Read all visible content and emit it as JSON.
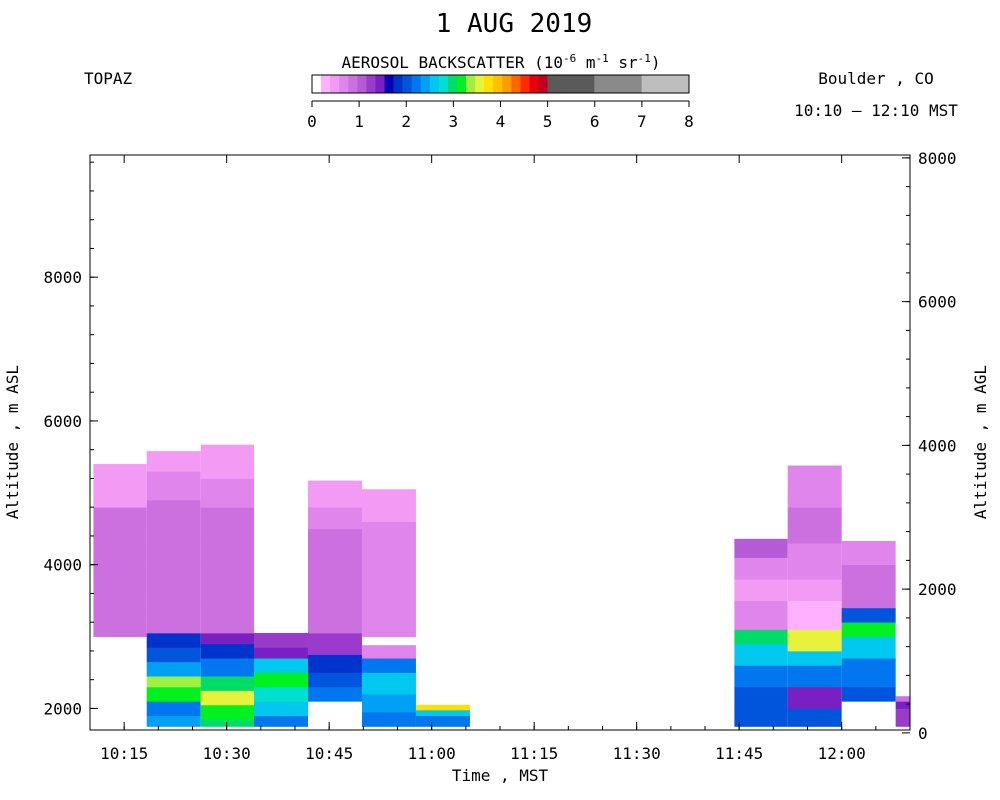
{
  "header": {
    "title": "1 AUG 2019",
    "instrument": "TOPAZ",
    "location": "Boulder , CO",
    "time_range": "10:10 – 12:10 MST"
  },
  "colorbar": {
    "title_prefix": "AEROSOL BACKSCATTER (10",
    "title_exp1": "-6",
    "title_mid1": " m",
    "title_exp2": "-1",
    "title_mid2": " sr",
    "title_exp3": "-1",
    "title_suffix": ")",
    "ticks": [
      "0",
      "1",
      "2",
      "3",
      "4",
      "5",
      "6",
      "7",
      "8"
    ],
    "colors": [
      "#ffffff",
      "#ffb0ff",
      "#f39af5",
      "#e085eb",
      "#cc70e0",
      "#b65ad6",
      "#9a3bcc",
      "#7a1fc2",
      "#0a00b4",
      "#0033cc",
      "#0055dd",
      "#0077ee",
      "#00a0f5",
      "#00c8ee",
      "#00e0d0",
      "#00dd66",
      "#00f020",
      "#a0f040",
      "#e8f23a",
      "#ffe000",
      "#ffc000",
      "#ff9a00",
      "#ff6600",
      "#ff2a00",
      "#e60010",
      "#c00020",
      "#5a5a5a",
      "#8a8a8a",
      "#bebebe"
    ]
  },
  "chart_data": {
    "type": "heatmap",
    "title": "1 AUG 2019",
    "xlabel": "Time , MST",
    "ylabel": "Altitude , m ASL",
    "ylabel_right": "Altitude , m AGL",
    "x_ticks": [
      "10:15",
      "10:30",
      "10:45",
      "11:00",
      "11:15",
      "11:30",
      "11:45",
      "12:00"
    ],
    "x_tick_minutes": [
      15,
      30,
      45,
      60,
      75,
      90,
      105,
      120
    ],
    "xlim_minutes": [
      10,
      130
    ],
    "ylim": [
      1700,
      9700
    ],
    "y_ticks": [
      2000,
      4000,
      6000,
      8000
    ],
    "y_ticks_right": [
      0,
      2000,
      4000,
      6000,
      8000
    ],
    "right_axis_offset": 1660,
    "units": "10^-6 m^-1 sr^-1",
    "columns": [
      {
        "t0": 10.5,
        "t1": 18.3,
        "segments": [
          [
            3000,
            3200,
            0.8
          ],
          [
            3200,
            3600,
            0.8
          ],
          [
            3600,
            4000,
            0.8
          ],
          [
            4000,
            4400,
            0.9
          ],
          [
            4400,
            4800,
            0.8
          ],
          [
            4800,
            5100,
            0.5
          ],
          [
            5100,
            5400,
            0.4
          ]
        ]
      },
      {
        "t0": 18.3,
        "t1": 26.2,
        "segments": [
          [
            1750,
            1900,
            2.4
          ],
          [
            1900,
            2100,
            2.2
          ],
          [
            2100,
            2300,
            3.2
          ],
          [
            2300,
            2450,
            3.4
          ],
          [
            2450,
            2650,
            2.4
          ],
          [
            2650,
            2850,
            2.1
          ],
          [
            2850,
            3050,
            1.8
          ],
          [
            3050,
            3500,
            0.8
          ],
          [
            3500,
            4000,
            0.9
          ],
          [
            4000,
            4400,
            0.9
          ],
          [
            4400,
            4900,
            0.8
          ],
          [
            4900,
            5300,
            0.6
          ],
          [
            5300,
            5580,
            0.4
          ]
        ]
      },
      {
        "t0": 26.2,
        "t1": 34.0,
        "segments": [
          [
            1750,
            1850,
            3.0
          ],
          [
            1850,
            2050,
            3.2
          ],
          [
            2050,
            2250,
            3.5
          ],
          [
            2250,
            2450,
            3.0
          ],
          [
            2450,
            2700,
            2.2
          ],
          [
            2700,
            2900,
            1.8
          ],
          [
            2900,
            3050,
            1.5
          ],
          [
            3050,
            3500,
            0.8
          ],
          [
            3500,
            4300,
            0.8
          ],
          [
            4300,
            4800,
            0.8
          ],
          [
            4800,
            5200,
            0.6
          ],
          [
            5200,
            5670,
            0.4
          ]
        ]
      },
      {
        "t0": 34.0,
        "t1": 41.9,
        "segments": [
          [
            1750,
            1900,
            2.2
          ],
          [
            1900,
            2100,
            2.6
          ],
          [
            2100,
            2300,
            2.8
          ],
          [
            2300,
            2500,
            3.2
          ],
          [
            2500,
            2700,
            2.6
          ],
          [
            2700,
            2850,
            1.4
          ],
          [
            2850,
            3050,
            1.2
          ]
        ]
      },
      {
        "t0": 41.9,
        "t1": 49.8,
        "segments": [
          [
            2100,
            2300,
            2.3
          ],
          [
            2300,
            2500,
            2.1
          ],
          [
            2500,
            2750,
            1.8
          ],
          [
            2750,
            3050,
            1.2
          ],
          [
            3050,
            3500,
            0.8
          ],
          [
            3500,
            4000,
            0.8
          ],
          [
            4000,
            4500,
            0.9
          ],
          [
            4500,
            4800,
            0.6
          ],
          [
            4800,
            5170,
            0.5
          ]
        ]
      },
      {
        "t0": 49.8,
        "t1": 57.7,
        "segments": [
          [
            1750,
            1950,
            2.2
          ],
          [
            1950,
            2200,
            2.4
          ],
          [
            2200,
            2500,
            2.6
          ],
          [
            2500,
            2700,
            2.3
          ],
          [
            2700,
            2880,
            0.7
          ],
          [
            3000,
            3400,
            0.7
          ],
          [
            3400,
            4000,
            0.7
          ],
          [
            4000,
            4600,
            0.6
          ],
          [
            4600,
            5050,
            0.5
          ]
        ]
      },
      {
        "t0": 57.7,
        "t1": 65.6,
        "segments": [
          [
            1750,
            1900,
            2.2
          ],
          [
            1900,
            1980,
            2.5
          ],
          [
            1980,
            2050,
            3.7
          ]
        ]
      },
      {
        "t0": 104.3,
        "t1": 112.1,
        "segments": [
          [
            1750,
            2000,
            2.0
          ],
          [
            2000,
            2300,
            2.1
          ],
          [
            2300,
            2600,
            2.3
          ],
          [
            2600,
            2900,
            2.6
          ],
          [
            2900,
            3100,
            3.0
          ],
          [
            3100,
            3500,
            0.7
          ],
          [
            3500,
            3800,
            0.4
          ],
          [
            3800,
            4100,
            0.7
          ],
          [
            4100,
            4360,
            1.0
          ]
        ]
      },
      {
        "t0": 112.1,
        "t1": 120.0,
        "segments": [
          [
            1750,
            2000,
            2.1
          ],
          [
            2000,
            2300,
            1.5
          ],
          [
            2300,
            2600,
            2.2
          ],
          [
            2600,
            2800,
            2.6
          ],
          [
            2800,
            3100,
            3.5
          ],
          [
            3100,
            3500,
            0.3
          ],
          [
            3500,
            3800,
            0.5
          ],
          [
            3800,
            4300,
            0.6
          ],
          [
            4300,
            4800,
            0.8
          ],
          [
            4800,
            5380,
            0.6
          ]
        ]
      },
      {
        "t0": 120.0,
        "t1": 127.9,
        "segments": [
          [
            2100,
            2300,
            2.0
          ],
          [
            2300,
            2700,
            2.2
          ],
          [
            2700,
            3000,
            2.6
          ],
          [
            3000,
            3200,
            3.1
          ],
          [
            3200,
            3400,
            2.0
          ],
          [
            3400,
            4000,
            0.8
          ],
          [
            4000,
            4330,
            0.7
          ]
        ]
      },
      {
        "t0": 127.9,
        "t1": 135.5,
        "segments": [
          [
            1750,
            2000,
            1.2
          ],
          [
            2000,
            2100,
            1.5
          ],
          [
            2100,
            2170,
            0.9
          ]
        ]
      }
    ]
  }
}
